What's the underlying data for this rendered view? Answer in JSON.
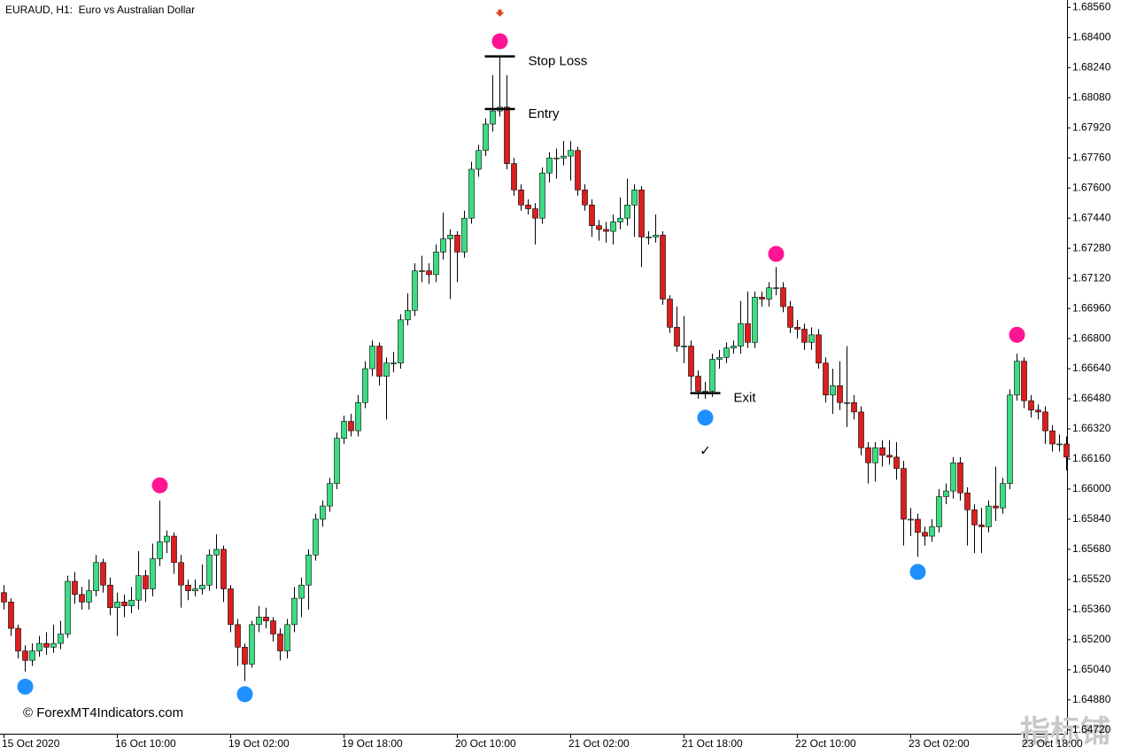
{
  "chart_data": {
    "type": "candlestick",
    "title": "EURAUD, H1:  Euro vs Australian Dollar",
    "watermark": "© ForexMT4Indicators.com",
    "corner_watermark": "指标铺",
    "categories": [
      "15 Oct 2020",
      null,
      null,
      null,
      null,
      null,
      null,
      null,
      null,
      null,
      null,
      null,
      null,
      null,
      null,
      null,
      "16 Oct 10:00",
      null,
      null,
      null,
      null,
      null,
      null,
      null,
      null,
      null,
      null,
      null,
      null,
      null,
      null,
      null,
      "19 Oct 02:00",
      null,
      null,
      null,
      null,
      null,
      null,
      null,
      null,
      null,
      null,
      null,
      null,
      null,
      null,
      null,
      "19 Oct 18:00",
      null,
      null,
      null,
      null,
      null,
      null,
      null,
      null,
      null,
      null,
      null,
      null,
      null,
      null,
      null,
      "20 Oct 10:00",
      null,
      null,
      null,
      null,
      null,
      null,
      null,
      null,
      null,
      null,
      null,
      null,
      null,
      null,
      null,
      "21 Oct 02:00",
      null,
      null,
      null,
      null,
      null,
      null,
      null,
      null,
      null,
      null,
      null,
      null,
      null,
      null,
      null,
      "21 Oct 18:00",
      null,
      null,
      null,
      null,
      null,
      null,
      null,
      null,
      null,
      null,
      null,
      null,
      null,
      null,
      null,
      "22 Oct 10:00",
      null,
      null,
      null,
      null,
      null,
      null,
      null,
      null,
      null,
      null,
      null,
      null,
      null,
      null,
      null,
      "23 Oct 02:00",
      null,
      null,
      null,
      null,
      null,
      null,
      null,
      null,
      null,
      null,
      null,
      null,
      null,
      null,
      null,
      "23 Oct 18:00",
      null,
      null,
      null,
      null,
      null,
      null
    ],
    "open": [
      1.6545,
      1.654,
      1.6526,
      1.6514,
      1.6509,
      1.6514,
      1.6518,
      1.6516,
      1.6518,
      1.6523,
      1.6551,
      1.6544,
      1.654,
      1.6546,
      1.6561,
      1.6549,
      1.6537,
      1.654,
      1.6538,
      1.6541,
      1.6554,
      1.6547,
      1.6563,
      1.6572,
      1.6575,
      1.6561,
      1.6549,
      1.6546,
      1.6547,
      1.6549,
      1.6565,
      1.6568,
      1.6547,
      1.6528,
      1.6516,
      1.6507,
      1.6528,
      1.6532,
      1.653,
      1.6523,
      1.6514,
      1.6528,
      1.6542,
      1.6549,
      1.6565,
      1.6584,
      1.6591,
      1.6603,
      1.6627,
      1.6636,
      1.6631,
      1.6646,
      1.6664,
      1.6676,
      1.666,
      1.6667,
      1.6667,
      1.669,
      1.6695,
      1.6716,
      1.6716,
      1.6714,
      1.6726,
      1.6733,
      1.6735,
      1.6726,
      1.6744,
      1.677,
      1.678,
      1.6794,
      1.6801,
      1.6803,
      1.6773,
      1.6759,
      1.6751,
      1.6749,
      1.6744,
      1.6768,
      1.6776,
      1.6776,
      1.6777,
      1.678,
      1.6759,
      1.6751,
      1.674,
      1.6738,
      1.6737,
      1.6742,
      1.6744,
      1.6751,
      1.6759,
      1.6734,
      1.6734,
      1.6735,
      1.6701,
      1.6686,
      1.6676,
      1.6676,
      1.666,
      1.6652,
      1.6652,
      1.6669,
      1.667,
      1.6675,
      1.6676,
      1.6688,
      1.6678,
      1.6702,
      1.6701,
      1.6707,
      1.6707,
      1.6697,
      1.6686,
      1.6685,
      1.6678,
      1.6682,
      1.6667,
      1.665,
      1.6655,
      1.6646,
      1.6646,
      1.6641,
      1.6622,
      1.6614,
      1.6622,
      1.6618,
      1.6617,
      1.6611,
      1.6584,
      1.6584,
      1.6577,
      1.6575,
      1.658,
      1.6596,
      1.6599,
      1.6614,
      1.6598,
      1.6589,
      1.6581,
      1.658,
      1.6591,
      1.659,
      1.6603,
      1.665,
      1.6668,
      1.6647,
      1.6642,
      1.6641,
      1.6631,
      1.6624,
      1.6624
    ],
    "close": [
      1.654,
      1.6526,
      1.6514,
      1.6509,
      1.6514,
      1.6518,
      1.6516,
      1.6518,
      1.6523,
      1.6551,
      1.6544,
      1.654,
      1.6546,
      1.6561,
      1.6549,
      1.6537,
      1.654,
      1.6538,
      1.6541,
      1.6554,
      1.6547,
      1.6563,
      1.6572,
      1.6575,
      1.6561,
      1.6549,
      1.6546,
      1.6547,
      1.6549,
      1.6565,
      1.6568,
      1.6547,
      1.6528,
      1.6516,
      1.6507,
      1.6528,
      1.6532,
      1.653,
      1.6523,
      1.6514,
      1.6528,
      1.6542,
      1.6549,
      1.6565,
      1.6584,
      1.6591,
      1.6603,
      1.6627,
      1.6636,
      1.6631,
      1.6646,
      1.6664,
      1.6676,
      1.666,
      1.6667,
      1.6667,
      1.669,
      1.6695,
      1.6716,
      1.6716,
      1.6714,
      1.6726,
      1.6733,
      1.6735,
      1.6726,
      1.6744,
      1.677,
      1.678,
      1.6794,
      1.6801,
      1.6803,
      1.6773,
      1.6759,
      1.6751,
      1.6749,
      1.6744,
      1.6768,
      1.6776,
      1.6776,
      1.6777,
      1.678,
      1.6759,
      1.6751,
      1.674,
      1.6738,
      1.6737,
      1.6742,
      1.6744,
      1.6751,
      1.6759,
      1.6734,
      1.6734,
      1.6735,
      1.6701,
      1.6686,
      1.6676,
      1.6676,
      1.666,
      1.6652,
      1.6652,
      1.6669,
      1.667,
      1.6675,
      1.6676,
      1.6688,
      1.6678,
      1.6702,
      1.6701,
      1.6707,
      1.6707,
      1.6697,
      1.6686,
      1.6685,
      1.6678,
      1.6682,
      1.6667,
      1.665,
      1.6655,
      1.6646,
      1.6646,
      1.6641,
      1.6622,
      1.6614,
      1.6622,
      1.6618,
      1.6617,
      1.6611,
      1.6584,
      1.6584,
      1.6577,
      1.6575,
      1.658,
      1.6596,
      1.6599,
      1.6614,
      1.6598,
      1.6589,
      1.6581,
      1.658,
      1.6591,
      1.659,
      1.6603,
      1.665,
      1.6668,
      1.6647,
      1.6642,
      1.6641,
      1.6631,
      1.6624,
      1.6624,
      1.6617
    ],
    "high": [
      1.6549,
      1.6542,
      1.6528,
      1.6517,
      1.6518,
      1.6522,
      1.6524,
      1.6528,
      1.653,
      1.6554,
      1.6556,
      1.6548,
      1.6552,
      1.6565,
      1.6563,
      1.6553,
      1.6545,
      1.6544,
      1.6548,
      1.6567,
      1.6557,
      1.6571,
      1.6594,
      1.6578,
      1.6577,
      1.6565,
      1.6552,
      1.6552,
      1.656,
      1.6568,
      1.6576,
      1.657,
      1.6549,
      1.6531,
      1.6518,
      1.653,
      1.6538,
      1.6537,
      1.6532,
      1.6526,
      1.6531,
      1.6548,
      1.6553,
      1.6568,
      1.6587,
      1.6594,
      1.6606,
      1.663,
      1.6639,
      1.664,
      1.665,
      1.6668,
      1.6679,
      1.6678,
      1.667,
      1.6673,
      1.6693,
      1.6704,
      1.672,
      1.6724,
      1.672,
      1.673,
      1.6747,
      1.6738,
      1.6737,
      1.6748,
      1.6774,
      1.6783,
      1.6797,
      1.682,
      1.683,
      1.682,
      1.6776,
      1.6762,
      1.6754,
      1.6752,
      1.6771,
      1.6779,
      1.6781,
      1.6785,
      1.6785,
      1.6782,
      1.6762,
      1.6754,
      1.6743,
      1.6742,
      1.6746,
      1.6755,
      1.6765,
      1.6762,
      1.6761,
      1.6737,
      1.6746,
      1.6737,
      1.6703,
      1.6697,
      1.6692,
      1.6679,
      1.6663,
      1.6657,
      1.6672,
      1.6674,
      1.6678,
      1.6679,
      1.67,
      1.6705,
      1.6705,
      1.6705,
      1.671,
      1.6718,
      1.671,
      1.67,
      1.669,
      1.6688,
      1.6686,
      1.6685,
      1.667,
      1.6664,
      1.6668,
      1.6676,
      1.665,
      1.6644,
      1.6625,
      1.6625,
      1.6626,
      1.6626,
      1.6625,
      1.6615,
      1.659,
      1.6587,
      1.658,
      1.6584,
      1.66,
      1.6603,
      1.6617,
      1.6617,
      1.6601,
      1.6592,
      1.659,
      1.6594,
      1.6612,
      1.6606,
      1.6653,
      1.6672,
      1.667,
      1.665,
      1.6645,
      1.6644,
      1.6634,
      1.6629,
      1.6628
    ],
    "low": [
      1.6536,
      1.6522,
      1.651,
      1.6503,
      1.6506,
      1.6511,
      1.6512,
      1.6513,
      1.6515,
      1.6521,
      1.6539,
      1.6536,
      1.6536,
      1.6543,
      1.6545,
      1.6533,
      1.6522,
      1.6532,
      1.6534,
      1.6536,
      1.654,
      1.6543,
      1.6559,
      1.6566,
      1.6555,
      1.6537,
      1.6541,
      1.6543,
      1.6544,
      1.6546,
      1.6547,
      1.654,
      1.6524,
      1.6506,
      1.6498,
      1.6505,
      1.6524,
      1.6526,
      1.6519,
      1.6509,
      1.651,
      1.6524,
      1.6532,
      1.6536,
      1.6562,
      1.658,
      1.6588,
      1.66,
      1.6624,
      1.6628,
      1.6628,
      1.6643,
      1.666,
      1.6655,
      1.6637,
      1.6662,
      1.6664,
      1.6687,
      1.6692,
      1.671,
      1.6709,
      1.671,
      1.6722,
      1.6701,
      1.671,
      1.6723,
      1.6741,
      1.6766,
      1.6777,
      1.679,
      1.6798,
      1.677,
      1.6756,
      1.6748,
      1.6746,
      1.673,
      1.6741,
      1.6763,
      1.6765,
      1.6772,
      1.6764,
      1.6756,
      1.6748,
      1.6734,
      1.6732,
      1.6731,
      1.673,
      1.6738,
      1.674,
      1.6734,
      1.6718,
      1.673,
      1.6731,
      1.6698,
      1.6683,
      1.6673,
      1.6667,
      1.6652,
      1.6648,
      1.6648,
      1.6649,
      1.6664,
      1.6667,
      1.6672,
      1.6672,
      1.6675,
      1.6675,
      1.6697,
      1.6697,
      1.6703,
      1.6694,
      1.6683,
      1.668,
      1.6674,
      1.6674,
      1.6664,
      1.6646,
      1.664,
      1.6642,
      1.6633,
      1.6637,
      1.6618,
      1.6603,
      1.6604,
      1.6612,
      1.6613,
      1.6605,
      1.657,
      1.6575,
      1.6564,
      1.657,
      1.6572,
      1.6577,
      1.6592,
      1.6595,
      1.6594,
      1.657,
      1.6566,
      1.6566,
      1.6577,
      1.6583,
      1.6587,
      1.66,
      1.6647,
      1.6643,
      1.6638,
      1.6637,
      1.6624,
      1.662,
      1.662,
      1.661
    ],
    "bull_color": "#3ddc84",
    "bear_color": "#dc1e1e",
    "sell_signals": {
      "color": "#ff1493",
      "points": [
        {
          "index": 22,
          "value": 1.6602
        },
        {
          "index": 70,
          "value": 1.6838
        },
        {
          "index": 109,
          "value": 1.6725
        },
        {
          "index": 143,
          "value": 1.6682
        }
      ]
    },
    "buy_signals": {
      "color": "#1e90ff",
      "points": [
        {
          "index": 3,
          "value": 1.6495
        },
        {
          "index": 34,
          "value": 1.6491
        },
        {
          "index": 99,
          "value": 1.6638
        },
        {
          "index": 129,
          "value": 1.6556
        }
      ]
    },
    "arrow": {
      "index": 70,
      "value": 1.6853,
      "color": "#e0401e"
    },
    "levels": [
      {
        "label": "Stop Loss",
        "index": 70,
        "value": 1.683
      },
      {
        "label": "Entry",
        "index": 70,
        "value": 1.6802
      },
      {
        "label": "Exit",
        "index": 99,
        "value": 1.6651
      }
    ],
    "check": {
      "text": "✓",
      "index": 99,
      "value": 1.662
    },
    "ylim": [
      1.647,
      1.6859
    ],
    "yticks": [
      {
        "value": 1.6856,
        "label": "1.68560"
      },
      {
        "value": 1.684,
        "label": "1.68400"
      },
      {
        "value": 1.6824,
        "label": "1.68240"
      },
      {
        "value": 1.6808,
        "label": "1.68080"
      },
      {
        "value": 1.6792,
        "label": "1.67920"
      },
      {
        "value": 1.6776,
        "label": "1.67760"
      },
      {
        "value": 1.676,
        "label": "1.67600"
      },
      {
        "value": 1.6744,
        "label": "1.67440"
      },
      {
        "value": 1.6728,
        "label": "1.67280"
      },
      {
        "value": 1.6712,
        "label": "1.67120"
      },
      {
        "value": 1.6696,
        "label": "1.66960"
      },
      {
        "value": 1.668,
        "label": "1.66800"
      },
      {
        "value": 1.6664,
        "label": "1.66640"
      },
      {
        "value": 1.6648,
        "label": "1.66480"
      },
      {
        "value": 1.6632,
        "label": "1.66320"
      },
      {
        "value": 1.6616,
        "label": "1.66160"
      },
      {
        "value": 1.66,
        "label": "1.66000"
      },
      {
        "value": 1.6584,
        "label": "1.65840"
      },
      {
        "value": 1.6568,
        "label": "1.65680"
      },
      {
        "value": 1.6552,
        "label": "1.65520"
      },
      {
        "value": 1.6536,
        "label": "1.65360"
      },
      {
        "value": 1.652,
        "label": "1.65200"
      },
      {
        "value": 1.6504,
        "label": "1.65040"
      },
      {
        "value": 1.6488,
        "label": "1.64880"
      },
      {
        "value": 1.6472,
        "label": "1.64720"
      }
    ]
  }
}
